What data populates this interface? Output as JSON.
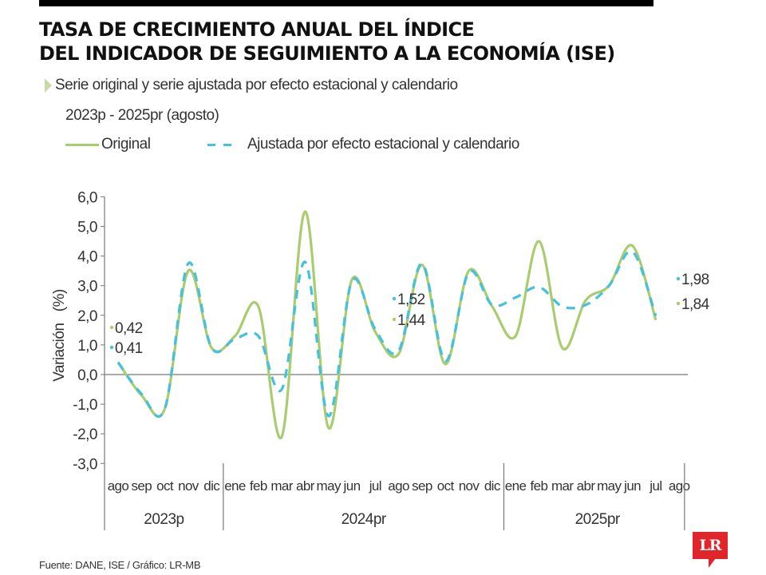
{
  "header": {
    "title_line1": "TASA DE CRECIMIENTO ANUAL DEL ÍNDICE",
    "title_line2": "DEL INDICADOR DE SEGUIMIENTO A LA ECONOMÍA (ISE)",
    "subtitle": "Serie original y serie ajustada por efecto estacional y calendario",
    "period": "2023p - 2025pr (agosto)"
  },
  "legend": {
    "original_label": "Original",
    "adjusted_label": "Ajustada por efecto estacional y calendario"
  },
  "footer": {
    "source": "Fuente: DANE, ISE / Gráfico: LR-MB",
    "logo_text": "LR"
  },
  "colors": {
    "original": "#a9cd6e",
    "adjusted": "#45c0de",
    "axis": "#777777",
    "logo": "#e2242b"
  },
  "chart_data": {
    "type": "line",
    "title": "TASA DE CRECIMIENTO ANUAL DEL ÍNDICE DEL INDICADOR DE SEGUIMIENTO A LA ECONOMÍA (ISE)",
    "xlabel": "",
    "ylabel": "Variación (%)",
    "ylim": [
      -3.0,
      6.0
    ],
    "yticks": [
      "6,0",
      "5,0",
      "4,0",
      "3,0",
      "2,0",
      "1,0",
      "0,0",
      "-1,0",
      "-2,0",
      "-3,0"
    ],
    "ytick_values": [
      6,
      5,
      4,
      3,
      2,
      1,
      0,
      -1,
      -2,
      -3
    ],
    "grid": false,
    "legend_position": "top-left",
    "x": [
      "ago",
      "sep",
      "oct",
      "nov",
      "dic",
      "ene",
      "feb",
      "mar",
      "abr",
      "may",
      "jun",
      "jul",
      "ago",
      "sep",
      "oct",
      "nov",
      "dic",
      "ene",
      "feb",
      "mar",
      "abr",
      "may",
      "jun",
      "jul",
      "ago"
    ],
    "year_groups": [
      {
        "label": "2023p",
        "start": 0,
        "end": 4
      },
      {
        "label": "2024pr",
        "start": 5,
        "end": 16
      },
      {
        "label": "2025pr",
        "start": 17,
        "end": 24
      }
    ],
    "series": [
      {
        "name": "Original",
        "values": [
          0.42,
          -0.7,
          -1.15,
          3.5,
          0.9,
          1.3,
          2.3,
          -2.1,
          5.5,
          -1.8,
          3.2,
          1.44,
          0.7,
          3.7,
          0.35,
          3.5,
          2.3,
          1.3,
          4.5,
          0.9,
          2.5,
          3.0,
          4.35,
          1.84,
          null
        ]
      },
      {
        "name": "Ajustada por efecto estacional y calendario",
        "values": [
          0.41,
          -0.65,
          -1.15,
          3.75,
          0.9,
          1.2,
          1.3,
          -0.5,
          3.8,
          -1.4,
          3.15,
          1.52,
          0.8,
          3.75,
          0.45,
          3.45,
          2.35,
          2.6,
          2.95,
          2.3,
          2.35,
          3.0,
          4.15,
          1.98,
          null
        ]
      }
    ],
    "annotations": [
      {
        "series": "Original",
        "index": 0,
        "text": "0,42"
      },
      {
        "series": "Ajustada por efecto estacional y calendario",
        "index": 0,
        "text": "0,41"
      },
      {
        "series": "Ajustada por efecto estacional y calendario",
        "index": 11,
        "text": "1,52"
      },
      {
        "series": "Original",
        "index": 11,
        "text": "1,44"
      },
      {
        "series": "Ajustada por efecto estacional y calendario",
        "index": 23,
        "text": "1,98"
      },
      {
        "series": "Original",
        "index": 23,
        "text": "1,84"
      }
    ]
  }
}
